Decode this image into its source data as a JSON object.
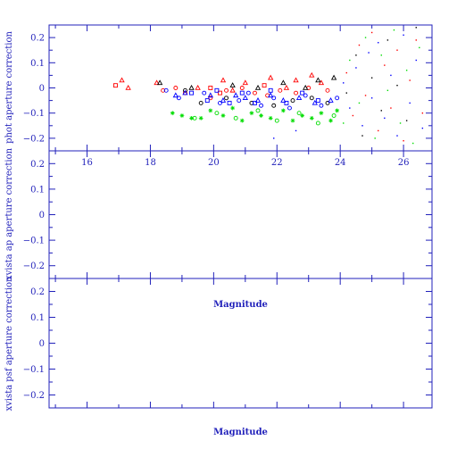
{
  "chart_data": [
    {
      "type": "scatter",
      "title": "",
      "xlabel": "",
      "ylabel": "phot aperture correction",
      "xlim": [
        14.8,
        26.9
      ],
      "ylim": [
        -0.25,
        0.25
      ],
      "xticks": [
        16,
        18,
        20,
        22,
        24,
        26
      ],
      "yticks": [
        -0.2,
        -0.1,
        0,
        0.1,
        0.2
      ],
      "ytick_labels": [
        "−0.2",
        "−0.1",
        "0",
        "0.1",
        "0.2"
      ],
      "grid": false,
      "series": [
        {
          "color": "#ff0000",
          "marker": "square",
          "points": [
            [
              16.9,
              0.01
            ],
            [
              19.9,
              0.0
            ],
            [
              20.2,
              -0.02
            ],
            [
              21.6,
              0.01
            ]
          ]
        },
        {
          "color": "#ff0000",
          "marker": "triangle",
          "points": [
            [
              17.1,
              0.03
            ],
            [
              17.3,
              0.0
            ],
            [
              18.2,
              0.02
            ],
            [
              19.5,
              0.0
            ],
            [
              20.3,
              0.03
            ],
            [
              20.6,
              -0.01
            ],
            [
              21.0,
              0.02
            ],
            [
              21.8,
              0.04
            ],
            [
              22.3,
              0.0
            ],
            [
              22.6,
              0.03
            ],
            [
              23.1,
              0.05
            ],
            [
              23.4,
              0.02
            ]
          ]
        },
        {
          "color": "#ff0000",
          "marker": "circle",
          "points": [
            [
              18.4,
              -0.01
            ],
            [
              18.8,
              0.0
            ],
            [
              19.1,
              -0.02
            ],
            [
              19.9,
              -0.04
            ],
            [
              20.4,
              -0.01
            ],
            [
              20.9,
              0.0
            ],
            [
              21.3,
              -0.02
            ],
            [
              21.7,
              -0.03
            ],
            [
              22.1,
              -0.01
            ],
            [
              22.6,
              -0.02
            ],
            [
              23.0,
              0.0
            ],
            [
              23.6,
              -0.01
            ]
          ]
        },
        {
          "color": "#000000",
          "marker": "circle",
          "points": [
            [
              19.1,
              -0.01
            ],
            [
              19.6,
              -0.06
            ],
            [
              20.4,
              -0.04
            ],
            [
              21.2,
              -0.06
            ],
            [
              21.9,
              -0.07
            ],
            [
              22.5,
              -0.05
            ],
            [
              23.1,
              -0.04
            ],
            [
              23.6,
              -0.06
            ]
          ]
        },
        {
          "color": "#000000",
          "marker": "triangle",
          "points": [
            [
              18.3,
              0.02
            ],
            [
              19.3,
              0.0
            ],
            [
              20.6,
              0.01
            ],
            [
              21.4,
              0.0
            ],
            [
              22.2,
              0.02
            ],
            [
              22.9,
              0.0
            ],
            [
              23.3,
              0.03
            ],
            [
              23.8,
              0.04
            ]
          ]
        },
        {
          "color": "#0000ff",
          "marker": "triangle",
          "points": [
            [
              18.8,
              -0.03
            ],
            [
              19.1,
              -0.02
            ],
            [
              19.9,
              -0.03
            ],
            [
              20.3,
              -0.05
            ],
            [
              20.7,
              -0.03
            ],
            [
              21.0,
              -0.04
            ],
            [
              21.4,
              -0.05
            ],
            [
              21.8,
              -0.03
            ],
            [
              22.2,
              -0.05
            ],
            [
              22.7,
              -0.04
            ],
            [
              23.2,
              -0.06
            ],
            [
              23.7,
              -0.05
            ]
          ]
        },
        {
          "color": "#0000ff",
          "marker": "circle",
          "points": [
            [
              18.5,
              -0.01
            ],
            [
              18.9,
              -0.04
            ],
            [
              19.7,
              -0.02
            ],
            [
              20.2,
              -0.06
            ],
            [
              20.8,
              -0.05
            ],
            [
              21.1,
              -0.02
            ],
            [
              21.5,
              -0.07
            ],
            [
              21.9,
              -0.04
            ],
            [
              22.4,
              -0.08
            ],
            [
              22.9,
              -0.03
            ],
            [
              23.4,
              -0.07
            ],
            [
              23.9,
              -0.04
            ]
          ]
        },
        {
          "color": "#0000ff",
          "marker": "square",
          "points": [
            [
              19.3,
              -0.02
            ],
            [
              19.8,
              -0.05
            ],
            [
              20.1,
              -0.01
            ],
            [
              20.5,
              -0.06
            ],
            [
              20.9,
              -0.02
            ],
            [
              21.3,
              -0.06
            ],
            [
              21.8,
              -0.01
            ],
            [
              22.3,
              -0.06
            ],
            [
              22.8,
              -0.02
            ],
            [
              23.3,
              -0.05
            ]
          ]
        },
        {
          "color": "#00dd00",
          "marker": "star",
          "points": [
            [
              18.7,
              -0.1
            ],
            [
              19.0,
              -0.11
            ],
            [
              19.3,
              -0.12
            ],
            [
              19.6,
              -0.12
            ],
            [
              19.9,
              -0.09
            ],
            [
              20.3,
              -0.11
            ],
            [
              20.6,
              -0.08
            ],
            [
              20.9,
              -0.13
            ],
            [
              21.2,
              -0.1
            ],
            [
              21.5,
              -0.11
            ],
            [
              21.8,
              -0.12
            ],
            [
              22.2,
              -0.09
            ],
            [
              22.5,
              -0.13
            ],
            [
              22.8,
              -0.11
            ],
            [
              23.1,
              -0.12
            ],
            [
              23.4,
              -0.1
            ],
            [
              23.7,
              -0.13
            ],
            [
              23.9,
              -0.09
            ]
          ]
        },
        {
          "color": "#00dd00",
          "marker": "circle",
          "points": [
            [
              19.4,
              -0.12
            ],
            [
              20.1,
              -0.1
            ],
            [
              20.7,
              -0.12
            ],
            [
              21.4,
              -0.09
            ],
            [
              22.0,
              -0.13
            ],
            [
              22.7,
              -0.1
            ],
            [
              23.3,
              -0.14
            ],
            [
              23.8,
              -0.11
            ]
          ]
        },
        {
          "color": "#0000ff",
          "marker": "dot",
          "points": [
            [
              21.9,
              -0.2
            ],
            [
              22.6,
              -0.17
            ],
            [
              24.1,
              0.02
            ],
            [
              24.3,
              -0.08
            ],
            [
              24.5,
              0.08
            ],
            [
              24.7,
              -0.15
            ],
            [
              24.9,
              0.14
            ],
            [
              25.0,
              -0.04
            ],
            [
              25.2,
              0.18
            ],
            [
              25.4,
              -0.12
            ],
            [
              25.6,
              0.05
            ],
            [
              25.8,
              -0.19
            ],
            [
              26.0,
              0.21
            ],
            [
              26.2,
              -0.06
            ],
            [
              26.4,
              0.11
            ],
            [
              26.6,
              -0.16
            ]
          ]
        },
        {
          "color": "#ff0000",
          "marker": "dot",
          "points": [
            [
              24.2,
              0.06
            ],
            [
              24.4,
              -0.11
            ],
            [
              24.6,
              0.17
            ],
            [
              24.8,
              -0.03
            ],
            [
              25.0,
              0.22
            ],
            [
              25.2,
              -0.17
            ],
            [
              25.4,
              0.09
            ],
            [
              25.6,
              -0.08
            ],
            [
              25.8,
              0.15
            ],
            [
              26.0,
              -0.21
            ],
            [
              26.2,
              0.03
            ],
            [
              26.4,
              0.19
            ],
            [
              26.6,
              -0.1
            ]
          ]
        },
        {
          "color": "#00dd00",
          "marker": "dot",
          "points": [
            [
              24.1,
              -0.14
            ],
            [
              24.3,
              0.11
            ],
            [
              24.6,
              -0.06
            ],
            [
              24.8,
              0.2
            ],
            [
              25.1,
              -0.2
            ],
            [
              25.3,
              0.13
            ],
            [
              25.5,
              -0.01
            ],
            [
              25.7,
              0.23
            ],
            [
              25.9,
              -0.14
            ],
            [
              26.1,
              0.07
            ],
            [
              26.3,
              -0.22
            ],
            [
              26.5,
              0.16
            ]
          ]
        },
        {
          "color": "#000000",
          "marker": "dot",
          "points": [
            [
              24.2,
              -0.02
            ],
            [
              24.5,
              0.13
            ],
            [
              24.7,
              -0.19
            ],
            [
              25.0,
              0.04
            ],
            [
              25.3,
              -0.09
            ],
            [
              25.5,
              0.19
            ],
            [
              25.8,
              0.01
            ],
            [
              26.1,
              -0.13
            ],
            [
              26.4,
              0.24
            ]
          ]
        }
      ]
    },
    {
      "type": "scatter",
      "title": "",
      "xlabel": "Magnitude",
      "ylabel": "xvista ap aperture correction",
      "xlim": [
        14.8,
        26.9
      ],
      "ylim": [
        -0.25,
        0.25
      ],
      "yticks": [
        -0.2,
        -0.1,
        0,
        0.1,
        0.2
      ],
      "ytick_labels": [
        "−0.2",
        "−0.1",
        "0",
        "0.1",
        "0.2"
      ],
      "grid": false,
      "series": []
    },
    {
      "type": "scatter",
      "title": "",
      "xlabel": "Magnitude",
      "ylabel": "xvista psf aperture correction",
      "xlim": [
        14.8,
        26.9
      ],
      "ylim": [
        -0.25,
        0.25
      ],
      "yticks": [
        -0.2,
        -0.1,
        0,
        0.1,
        0.2
      ],
      "ytick_labels": [
        "−0.2",
        "−0.1",
        "0",
        "0.1",
        "0.2"
      ],
      "grid": false,
      "series": []
    }
  ]
}
